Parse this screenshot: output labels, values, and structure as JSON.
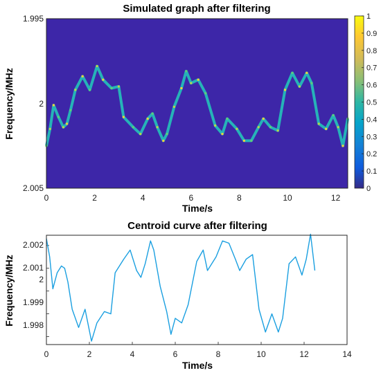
{
  "colors": {
    "spectrogram_background": "#3d26a8",
    "spectrogram_ridge": [
      "#26b3b8",
      "#5fcc7a",
      "#b9d64a",
      "#f2d13a"
    ],
    "centroid_line": "#1a9fe0",
    "axes": "#262626"
  },
  "colormap": "parula",
  "chart_data": [
    {
      "type": "heatmap",
      "title": "Simulated graph after filtering",
      "xlabel": "Time/s",
      "ylabel": "Frequency/MHz",
      "xlim": [
        0,
        12.5
      ],
      "ylim": [
        1.995,
        2.005
      ],
      "y_reversed": true,
      "xticks": [
        "0",
        "2",
        "4",
        "6",
        "8",
        "10",
        "12"
      ],
      "yticks": [
        "1.995",
        "2",
        "2.005"
      ],
      "colorbar": {
        "range": [
          0,
          1
        ],
        "ticks": [
          "0",
          "0.1",
          "0.2",
          "0.3",
          "0.4",
          "0.5",
          "0.6",
          "0.7",
          "0.8",
          "0.9",
          "1"
        ]
      },
      "ridge": {
        "t": [
          0,
          0.15,
          0.3,
          0.5,
          0.7,
          0.85,
          1.0,
          1.2,
          1.5,
          1.8,
          2.1,
          2.35,
          2.7,
          3.0,
          3.2,
          3.6,
          3.9,
          4.2,
          4.4,
          4.6,
          4.85,
          5.0,
          5.3,
          5.6,
          5.8,
          6.0,
          6.3,
          6.6,
          7.0,
          7.3,
          7.5,
          7.9,
          8.2,
          8.5,
          8.8,
          9.0,
          9.3,
          9.6,
          9.9,
          10.2,
          10.5,
          10.8,
          11.0,
          11.3,
          11.6,
          11.9,
          12.1,
          12.3,
          12.5
        ],
        "f": [
          2.0025,
          2.0015,
          2.0001,
          2.0008,
          2.0014,
          2.0012,
          2.0004,
          1.9992,
          1.9984,
          1.9992,
          1.9978,
          1.9986,
          1.9991,
          1.999,
          2.0008,
          2.0014,
          2.0018,
          2.0009,
          2.0006,
          2.0014,
          2.0022,
          2.0018,
          2.0002,
          1.9991,
          1.9981,
          1.9988,
          1.9986,
          1.9994,
          2.0013,
          2.0018,
          2.0009,
          2.0015,
          2.0022,
          2.0022,
          2.0014,
          2.0009,
          2.0014,
          2.0016,
          1.9992,
          1.9982,
          1.999,
          1.9982,
          1.9988,
          2.0012,
          2.0015,
          2.0007,
          2.0014,
          2.0025,
          2.0009
        ]
      }
    },
    {
      "type": "line",
      "title": "Centroid curve after filtering",
      "xlabel": "Time/s",
      "ylabel": "Frequency/MHz",
      "xlim": [
        0,
        14
      ],
      "ylim": [
        1.99765,
        2.00245
      ],
      "xticks": [
        "0",
        "2",
        "4",
        "6",
        "8",
        "10",
        "12",
        "14"
      ],
      "yticks": [
        "1.998",
        "1.999",
        "2",
        "2.001",
        "2.002"
      ],
      "x": [
        0,
        0.15,
        0.3,
        0.5,
        0.7,
        0.85,
        1.0,
        1.2,
        1.5,
        1.8,
        2.1,
        2.35,
        2.7,
        3.0,
        3.2,
        3.6,
        3.9,
        4.2,
        4.4,
        4.6,
        4.85,
        5.0,
        5.3,
        5.6,
        5.8,
        6.0,
        6.3,
        6.6,
        7.0,
        7.3,
        7.5,
        7.9,
        8.2,
        8.5,
        8.8,
        9.0,
        9.3,
        9.6,
        9.9,
        10.2,
        10.5,
        10.8,
        11.0,
        11.3,
        11.6,
        11.9,
        12.1,
        12.3,
        12.5
      ],
      "y": [
        2.0023,
        2.0015,
        2.0001,
        2.0008,
        2.0011,
        2.001,
        2.0004,
        1.9992,
        1.9984,
        1.9992,
        1.9978,
        1.9986,
        1.9991,
        1.999,
        2.0008,
        2.0014,
        2.0018,
        2.0009,
        2.0006,
        2.0012,
        2.0022,
        2.0018,
        2.0002,
        1.9991,
        1.9981,
        1.9988,
        1.9986,
        1.9994,
        2.0013,
        2.0018,
        2.0009,
        2.0015,
        2.0022,
        2.0021,
        2.0014,
        2.0009,
        2.0014,
        2.0016,
        1.9992,
        1.9982,
        1.999,
        1.9982,
        1.9988,
        2.0012,
        2.0015,
        2.0007,
        2.0014,
        2.0025,
        2.0009
      ]
    }
  ]
}
